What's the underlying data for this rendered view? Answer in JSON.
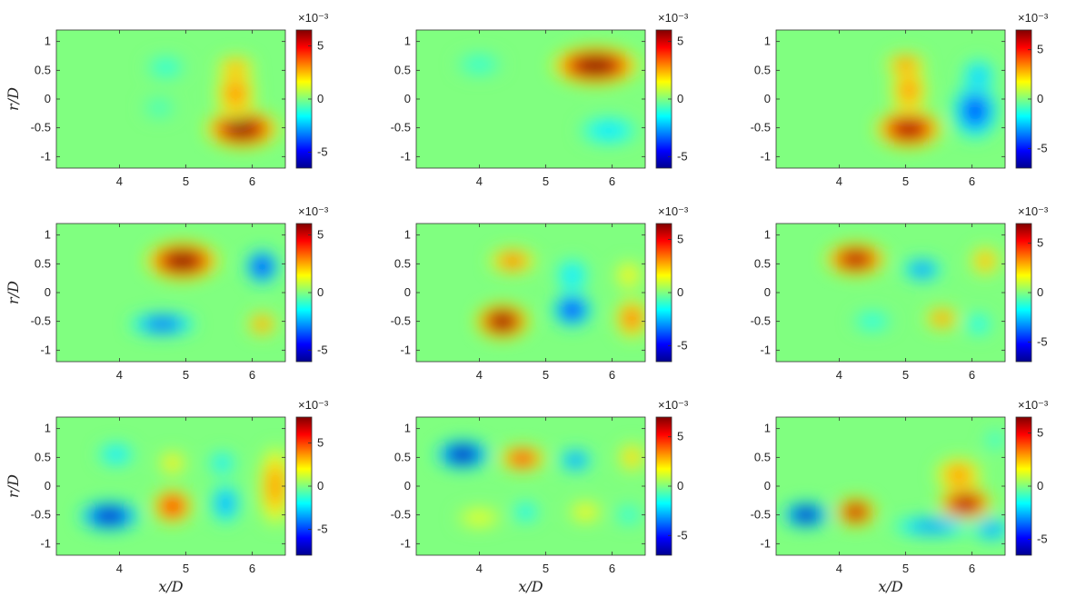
{
  "figure": {
    "rows": 3,
    "cols": 3,
    "xlabel": "x/D",
    "ylabel": "r/D",
    "colorbar_scale_text": "×10⁻³",
    "colormap": [
      "#00008f",
      "#0000ff",
      "#00ffff",
      "#ffff00",
      "#ff0000",
      "#800000"
    ],
    "background_color": "#66e39a"
  },
  "chart_data": [
    {
      "type": "heatmap",
      "panel": "row1-col1",
      "xlim": [
        3.05,
        6.5
      ],
      "ylim": [
        -1.2,
        1.2
      ],
      "xticks": [
        4,
        5,
        6
      ],
      "yticks": [
        1,
        0.5,
        0,
        -0.5,
        -1
      ],
      "colorbar": {
        "scale": "x10^-3",
        "ticks": [
          5,
          0,
          -5
        ],
        "clim": [
          -6.5,
          6.5
        ]
      },
      "blobs": [
        {
          "x": 5.85,
          "y": -0.52,
          "rx": 0.55,
          "ry": 0.33,
          "v": 6.4
        },
        {
          "x": 5.75,
          "y": 0.1,
          "rx": 0.3,
          "ry": 0.45,
          "v": 3.0
        },
        {
          "x": 5.75,
          "y": 0.55,
          "rx": 0.28,
          "ry": 0.2,
          "v": 2.8
        },
        {
          "x": 4.7,
          "y": 0.55,
          "rx": 0.3,
          "ry": 0.2,
          "v": -1.2
        },
        {
          "x": 4.6,
          "y": -0.15,
          "rx": 0.25,
          "ry": 0.2,
          "v": -0.8
        }
      ]
    },
    {
      "type": "heatmap",
      "panel": "row1-col2",
      "xlim": [
        3.05,
        6.5
      ],
      "ylim": [
        -1.2,
        1.2
      ],
      "xticks": [
        4,
        5,
        6
      ],
      "yticks": [
        1,
        0.5,
        0,
        -0.5,
        -1
      ],
      "colorbar": {
        "scale": "x10^-3",
        "ticks": [
          5,
          0,
          -5
        ],
        "clim": [
          -6,
          6
        ]
      },
      "blobs": [
        {
          "x": 5.75,
          "y": 0.58,
          "rx": 0.65,
          "ry": 0.33,
          "v": 6.0
        },
        {
          "x": 5.95,
          "y": -0.55,
          "rx": 0.45,
          "ry": 0.25,
          "v": -1.8
        },
        {
          "x": 4.0,
          "y": 0.6,
          "rx": 0.35,
          "ry": 0.2,
          "v": -1.0
        }
      ]
    },
    {
      "type": "heatmap",
      "panel": "row1-col3",
      "xlim": [
        3.05,
        6.5
      ],
      "ylim": [
        -1.2,
        1.2
      ],
      "xticks": [
        4,
        5,
        6
      ],
      "yticks": [
        1,
        0.5,
        0,
        -0.5,
        -1
      ],
      "colorbar": {
        "scale": "x10^-3",
        "ticks": [
          5,
          0,
          -5
        ],
        "clim": [
          -7,
          7
        ]
      },
      "blobs": [
        {
          "x": 5.05,
          "y": -0.52,
          "rx": 0.5,
          "ry": 0.33,
          "v": 6.5
        },
        {
          "x": 5.05,
          "y": 0.15,
          "rx": 0.28,
          "ry": 0.4,
          "v": 3.2
        },
        {
          "x": 5.0,
          "y": 0.6,
          "rx": 0.3,
          "ry": 0.2,
          "v": 3.5
        },
        {
          "x": 6.05,
          "y": -0.2,
          "rx": 0.35,
          "ry": 0.5,
          "v": -4.0
        },
        {
          "x": 6.1,
          "y": 0.4,
          "rx": 0.25,
          "ry": 0.3,
          "v": -2.5
        }
      ]
    },
    {
      "type": "heatmap",
      "panel": "row2-col1",
      "xlim": [
        3.05,
        6.5
      ],
      "ylim": [
        -1.2,
        1.2
      ],
      "xticks": [
        4,
        5,
        6
      ],
      "yticks": [
        1,
        0.5,
        0,
        -0.5,
        -1
      ],
      "colorbar": {
        "scale": "x10^-3",
        "ticks": [
          5,
          0,
          -5
        ],
        "clim": [
          -6,
          6
        ]
      },
      "blobs": [
        {
          "x": 4.95,
          "y": 0.55,
          "rx": 0.55,
          "ry": 0.33,
          "v": 6.0
        },
        {
          "x": 4.65,
          "y": -0.55,
          "rx": 0.5,
          "ry": 0.2,
          "v": -3.5
        },
        {
          "x": 6.15,
          "y": 0.45,
          "rx": 0.25,
          "ry": 0.3,
          "v": -4.5
        },
        {
          "x": 6.15,
          "y": -0.55,
          "rx": 0.22,
          "ry": 0.2,
          "v": 3.0
        }
      ]
    },
    {
      "type": "heatmap",
      "panel": "row2-col2",
      "xlim": [
        3.05,
        6.5
      ],
      "ylim": [
        -1.2,
        1.2
      ],
      "xticks": [
        4,
        5,
        6
      ],
      "yticks": [
        1,
        0.5,
        0,
        -0.5,
        -1
      ],
      "colorbar": {
        "scale": "x10^-3",
        "ticks": [
          5,
          0,
          -5
        ],
        "clim": [
          -6.5,
          6.5
        ]
      },
      "blobs": [
        {
          "x": 4.35,
          "y": -0.5,
          "rx": 0.4,
          "ry": 0.3,
          "v": 6.5
        },
        {
          "x": 4.5,
          "y": 0.55,
          "rx": 0.35,
          "ry": 0.22,
          "v": 3.5
        },
        {
          "x": 5.4,
          "y": -0.3,
          "rx": 0.3,
          "ry": 0.3,
          "v": -4.5
        },
        {
          "x": 5.4,
          "y": 0.3,
          "rx": 0.25,
          "ry": 0.3,
          "v": -2.0
        },
        {
          "x": 6.3,
          "y": -0.45,
          "rx": 0.25,
          "ry": 0.35,
          "v": 3.5
        },
        {
          "x": 6.25,
          "y": 0.3,
          "rx": 0.2,
          "ry": 0.25,
          "v": 1.8
        }
      ]
    },
    {
      "type": "heatmap",
      "panel": "row2-col3",
      "xlim": [
        3.05,
        6.5
      ],
      "ylim": [
        -1.2,
        1.2
      ],
      "xticks": [
        4,
        5,
        6
      ],
      "yticks": [
        1,
        0.5,
        0,
        -0.5,
        -1
      ],
      "colorbar": {
        "scale": "x10^-3",
        "ticks": [
          5,
          0,
          -5
        ],
        "clim": [
          -7,
          7
        ]
      },
      "blobs": [
        {
          "x": 4.25,
          "y": 0.58,
          "rx": 0.45,
          "ry": 0.28,
          "v": 6.5
        },
        {
          "x": 5.25,
          "y": 0.4,
          "rx": 0.3,
          "ry": 0.2,
          "v": -3.5
        },
        {
          "x": 5.55,
          "y": -0.45,
          "rx": 0.25,
          "ry": 0.2,
          "v": 3.5
        },
        {
          "x": 4.5,
          "y": -0.5,
          "rx": 0.3,
          "ry": 0.18,
          "v": -1.5
        },
        {
          "x": 6.2,
          "y": 0.55,
          "rx": 0.22,
          "ry": 0.25,
          "v": 3.0
        },
        {
          "x": 6.1,
          "y": -0.55,
          "rx": 0.2,
          "ry": 0.2,
          "v": -1.8
        }
      ]
    },
    {
      "type": "heatmap",
      "panel": "row3-col1",
      "xlim": [
        3.05,
        6.5
      ],
      "ylim": [
        -1.2,
        1.2
      ],
      "xticks": [
        4,
        5,
        6
      ],
      "yticks": [
        1,
        0.5,
        0,
        -0.5,
        -1
      ],
      "colorbar": {
        "scale": "x10^-3",
        "ticks": [
          5,
          0,
          -5
        ],
        "clim": [
          -8,
          8
        ]
      },
      "blobs": [
        {
          "x": 3.85,
          "y": -0.52,
          "rx": 0.45,
          "ry": 0.25,
          "v": -7.0
        },
        {
          "x": 3.95,
          "y": 0.55,
          "rx": 0.28,
          "ry": 0.2,
          "v": -2.5
        },
        {
          "x": 4.8,
          "y": -0.35,
          "rx": 0.3,
          "ry": 0.3,
          "v": 6.0
        },
        {
          "x": 4.8,
          "y": 0.4,
          "rx": 0.2,
          "ry": 0.2,
          "v": 2.5
        },
        {
          "x": 5.6,
          "y": -0.3,
          "rx": 0.22,
          "ry": 0.35,
          "v": -3.5
        },
        {
          "x": 5.55,
          "y": 0.4,
          "rx": 0.2,
          "ry": 0.2,
          "v": -2.5
        },
        {
          "x": 6.35,
          "y": 0.0,
          "rx": 0.25,
          "ry": 0.7,
          "v": 3.5
        }
      ]
    },
    {
      "type": "heatmap",
      "panel": "row3-col2",
      "xlim": [
        3.05,
        6.5
      ],
      "ylim": [
        -1.2,
        1.2
      ],
      "xticks": [
        4,
        5,
        6
      ],
      "yticks": [
        1,
        0.5,
        0,
        -0.5,
        -1
      ],
      "colorbar": {
        "scale": "x10^-3",
        "ticks": [
          5,
          0,
          -5
        ],
        "clim": [
          -7,
          7
        ]
      },
      "blobs": [
        {
          "x": 3.75,
          "y": 0.55,
          "rx": 0.4,
          "ry": 0.25,
          "v": -6.5
        },
        {
          "x": 4.65,
          "y": 0.48,
          "rx": 0.35,
          "ry": 0.22,
          "v": 5.0
        },
        {
          "x": 5.45,
          "y": 0.45,
          "rx": 0.25,
          "ry": 0.2,
          "v": -3.5
        },
        {
          "x": 6.3,
          "y": 0.5,
          "rx": 0.2,
          "ry": 0.25,
          "v": 2.5
        },
        {
          "x": 4.0,
          "y": -0.55,
          "rx": 0.35,
          "ry": 0.18,
          "v": 1.5
        },
        {
          "x": 4.7,
          "y": -0.45,
          "rx": 0.2,
          "ry": 0.18,
          "v": -2.0
        },
        {
          "x": 5.6,
          "y": -0.45,
          "rx": 0.25,
          "ry": 0.18,
          "v": 2.0
        },
        {
          "x": 6.25,
          "y": -0.5,
          "rx": 0.2,
          "ry": 0.18,
          "v": -1.5
        }
      ]
    },
    {
      "type": "heatmap",
      "panel": "row3-col3",
      "xlim": [
        3.05,
        6.5
      ],
      "ylim": [
        -1.2,
        1.2
      ],
      "xticks": [
        4,
        5,
        6
      ],
      "yticks": [
        1,
        0.5,
        0,
        -0.5,
        -1
      ],
      "colorbar": {
        "scale": "x10^-3",
        "ticks": [
          5,
          0,
          -5
        ],
        "clim": [
          -6.5,
          6.5
        ]
      },
      "blobs": [
        {
          "x": 3.5,
          "y": -0.5,
          "rx": 0.35,
          "ry": 0.22,
          "v": -6.0
        },
        {
          "x": 4.25,
          "y": -0.45,
          "rx": 0.3,
          "ry": 0.25,
          "v": 6.0
        },
        {
          "x": 5.9,
          "y": -0.3,
          "rx": 0.4,
          "ry": 0.3,
          "v": 6.0
        },
        {
          "x": 5.8,
          "y": 0.2,
          "rx": 0.35,
          "ry": 0.3,
          "v": 3.0
        },
        {
          "x": 5.4,
          "y": -0.7,
          "rx": 0.6,
          "ry": 0.18,
          "v": -3.0
        },
        {
          "x": 6.3,
          "y": -0.75,
          "rx": 0.3,
          "ry": 0.2,
          "v": -3.0
        },
        {
          "x": 6.35,
          "y": 0.8,
          "rx": 0.15,
          "ry": 0.15,
          "v": -1.5
        }
      ]
    }
  ]
}
